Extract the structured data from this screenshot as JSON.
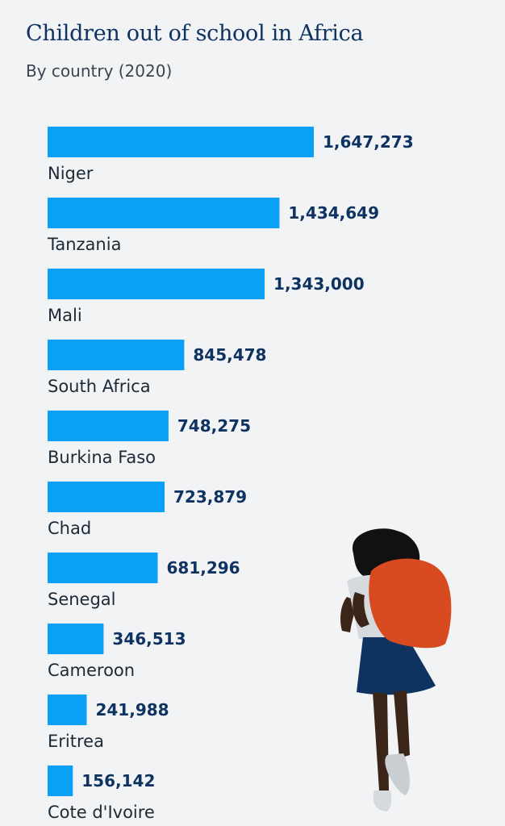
{
  "title": "Children out of school in Africa",
  "subtitle": "By country (2020)",
  "colors": {
    "bar": "#0aa0f5",
    "value_text": "#0f3361",
    "label_text": "#1c2a36",
    "background": "#f1f3f5"
  },
  "chart_data": {
    "type": "bar",
    "orientation": "horizontal",
    "categories": [
      "Niger",
      "Tanzania",
      "Mali",
      "South Africa",
      "Burkina Faso",
      "Chad",
      "Senegal",
      "Cameroon",
      "Eritrea",
      "Cote d'Ivoire"
    ],
    "values": [
      1647273,
      1434649,
      1343000,
      845478,
      748275,
      723879,
      681296,
      346513,
      241988,
      156142
    ],
    "value_labels": [
      "1,647,273",
      "1,434,649",
      "1,343,000",
      "845,478",
      "748,275",
      "723,879",
      "681,296",
      "346,513",
      "241,988",
      "156,142"
    ],
    "grid": false,
    "legend": "none"
  }
}
